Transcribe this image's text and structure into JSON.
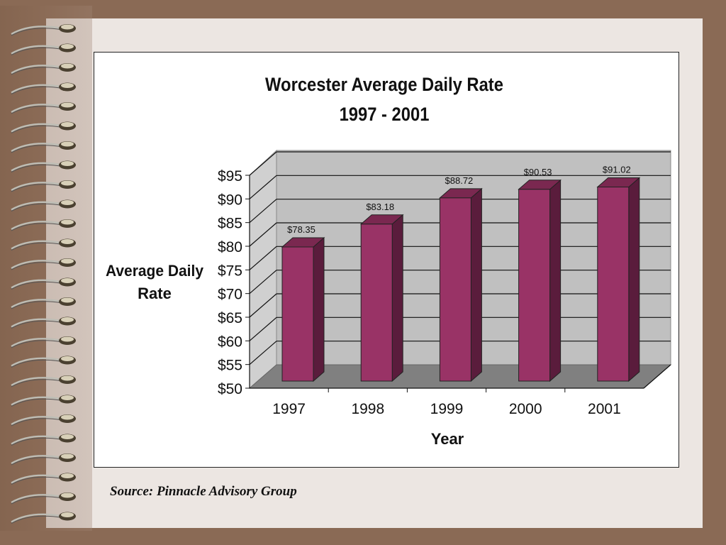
{
  "source_note": "Source: Pinnacle Advisory Group",
  "chart_data": {
    "type": "bar",
    "title": "Worcester Average Daily Rate",
    "subtitle": "1997 - 2001",
    "xlabel": "Year",
    "ylabel": "Average Daily Rate",
    "categories": [
      "1997",
      "1998",
      "1999",
      "2000",
      "2001"
    ],
    "values": [
      78.35,
      83.18,
      88.72,
      90.53,
      91.02
    ],
    "data_labels": [
      "$78.35",
      "$83.18",
      "$88.72",
      "$90.53",
      "$91.02"
    ],
    "ylim": [
      50,
      95
    ],
    "yticks": [
      50,
      55,
      60,
      65,
      70,
      75,
      80,
      85,
      90,
      95
    ],
    "ytick_labels": [
      "$50",
      "$55",
      "$60",
      "$65",
      "$70",
      "$75",
      "$80",
      "$85",
      "$90",
      "$95"
    ],
    "grid": true,
    "three_d": true,
    "colors": {
      "bar_front": "#993366",
      "bar_side": "#5a1c3c",
      "bar_top": "#7a2850",
      "back_wall": "#c0c0c0",
      "floor": "#808080"
    }
  }
}
